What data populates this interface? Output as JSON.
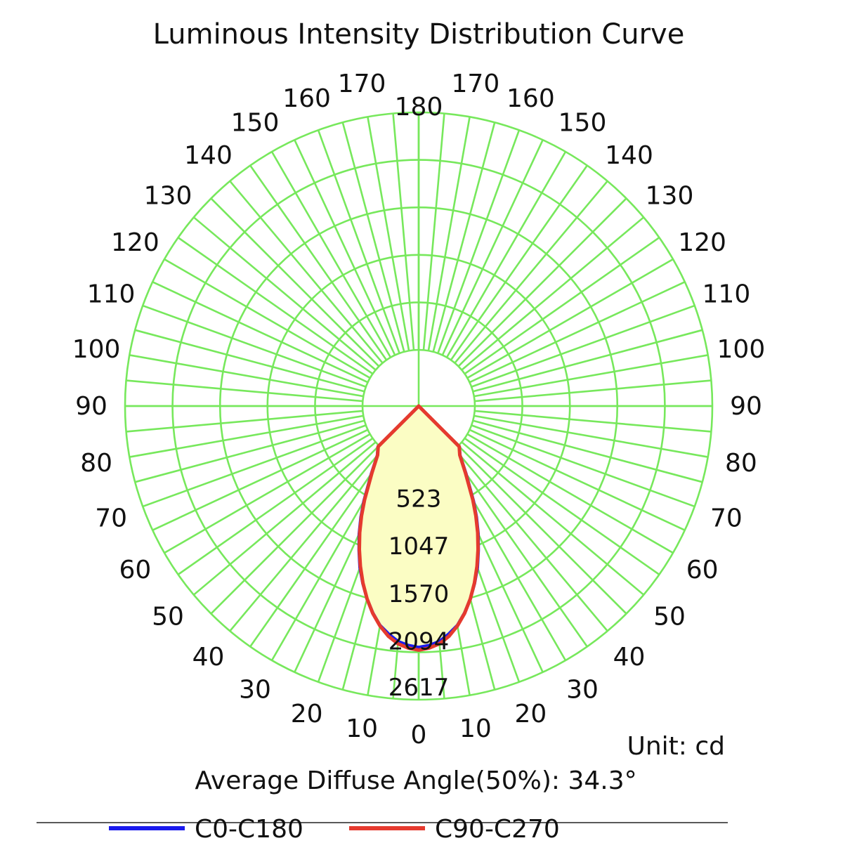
{
  "chart_data": {
    "type": "polar",
    "title": "Luminous Intensity Distribution Curve",
    "unit_label": "Unit: cd",
    "diffuse_angle_label": "Average Diffuse Angle(50%): 34.3°",
    "ring_values": [
      523,
      1047,
      1570,
      2094,
      2617
    ],
    "ring_labels": [
      "523",
      "1047",
      "1570",
      "2094",
      "2617"
    ],
    "angle_ticks": [
      0,
      10,
      20,
      30,
      40,
      50,
      60,
      70,
      80,
      90,
      100,
      110,
      120,
      130,
      140,
      150,
      160,
      170,
      180
    ],
    "angle_labels": [
      "0",
      "10",
      "20",
      "30",
      "40",
      "50",
      "60",
      "70",
      "80",
      "90",
      "100",
      "110",
      "120",
      "130",
      "140",
      "150",
      "160",
      "170",
      "180"
    ],
    "grid": true,
    "series": [
      {
        "name": "C0-C180",
        "color": "#1a1aee",
        "angles": [
          0,
          2.5,
          5,
          7.5,
          10,
          12.5,
          15,
          17.5,
          20,
          22.5,
          25,
          27.5,
          30,
          35,
          40,
          45,
          50
        ],
        "values": [
          2040,
          2020,
          1985,
          1915,
          1835,
          1715,
          1580,
          1430,
          1275,
          1100,
          935,
          760,
          590,
          290,
          90,
          15,
          0
        ]
      },
      {
        "name": "C90-C270",
        "color": "#e53a2e",
        "angles": [
          0,
          2.5,
          5,
          7.5,
          10,
          12.5,
          15,
          17.5,
          20,
          22.5,
          25,
          27.5,
          30,
          35,
          40,
          45,
          50
        ],
        "values": [
          2070,
          2050,
          2010,
          1940,
          1840,
          1720,
          1580,
          1425,
          1260,
          1090,
          920,
          745,
          575,
          280,
          85,
          12,
          0
        ]
      }
    ],
    "legend": {
      "position": "bottom"
    }
  },
  "colors": {
    "grid": "#77e85c",
    "fill": "#fbfdc4"
  }
}
